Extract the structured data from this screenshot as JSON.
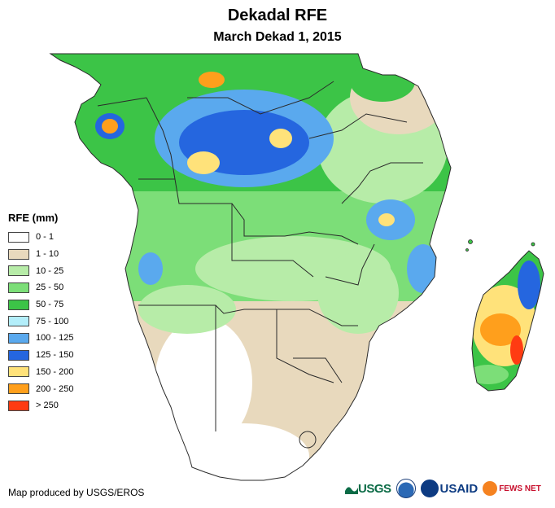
{
  "title": "Dekadal RFE",
  "subtitle": "March Dekad 1, 2015",
  "legend": {
    "title": "RFE (mm)",
    "items": [
      {
        "label": "0 - 1",
        "color": "#ffffff"
      },
      {
        "label": "1 - 10",
        "color": "#e8d9bd"
      },
      {
        "label": "10 - 25",
        "color": "#b7eca8"
      },
      {
        "label": "25 - 50",
        "color": "#7cde78"
      },
      {
        "label": "50 - 75",
        "color": "#3cc447"
      },
      {
        "label": "75 - 100",
        "color": "#b3eefa"
      },
      {
        "label": "100 - 125",
        "color": "#5aa9ee"
      },
      {
        "label": "125 - 150",
        "color": "#2566df"
      },
      {
        "label": "150 - 200",
        "color": "#ffe27a"
      },
      {
        "label": "200 - 250",
        "color": "#ff9f1c"
      },
      {
        "label": "> 250",
        "color": "#ff3b12"
      }
    ]
  },
  "credit": "Map produced by USGS/EROS",
  "logos": {
    "usgs": "USGS",
    "usaid_main": "USAID",
    "fews": "FEWS NET"
  },
  "map_colors": {
    "border": "#2a2a2a",
    "ocean": "#ffffff"
  }
}
